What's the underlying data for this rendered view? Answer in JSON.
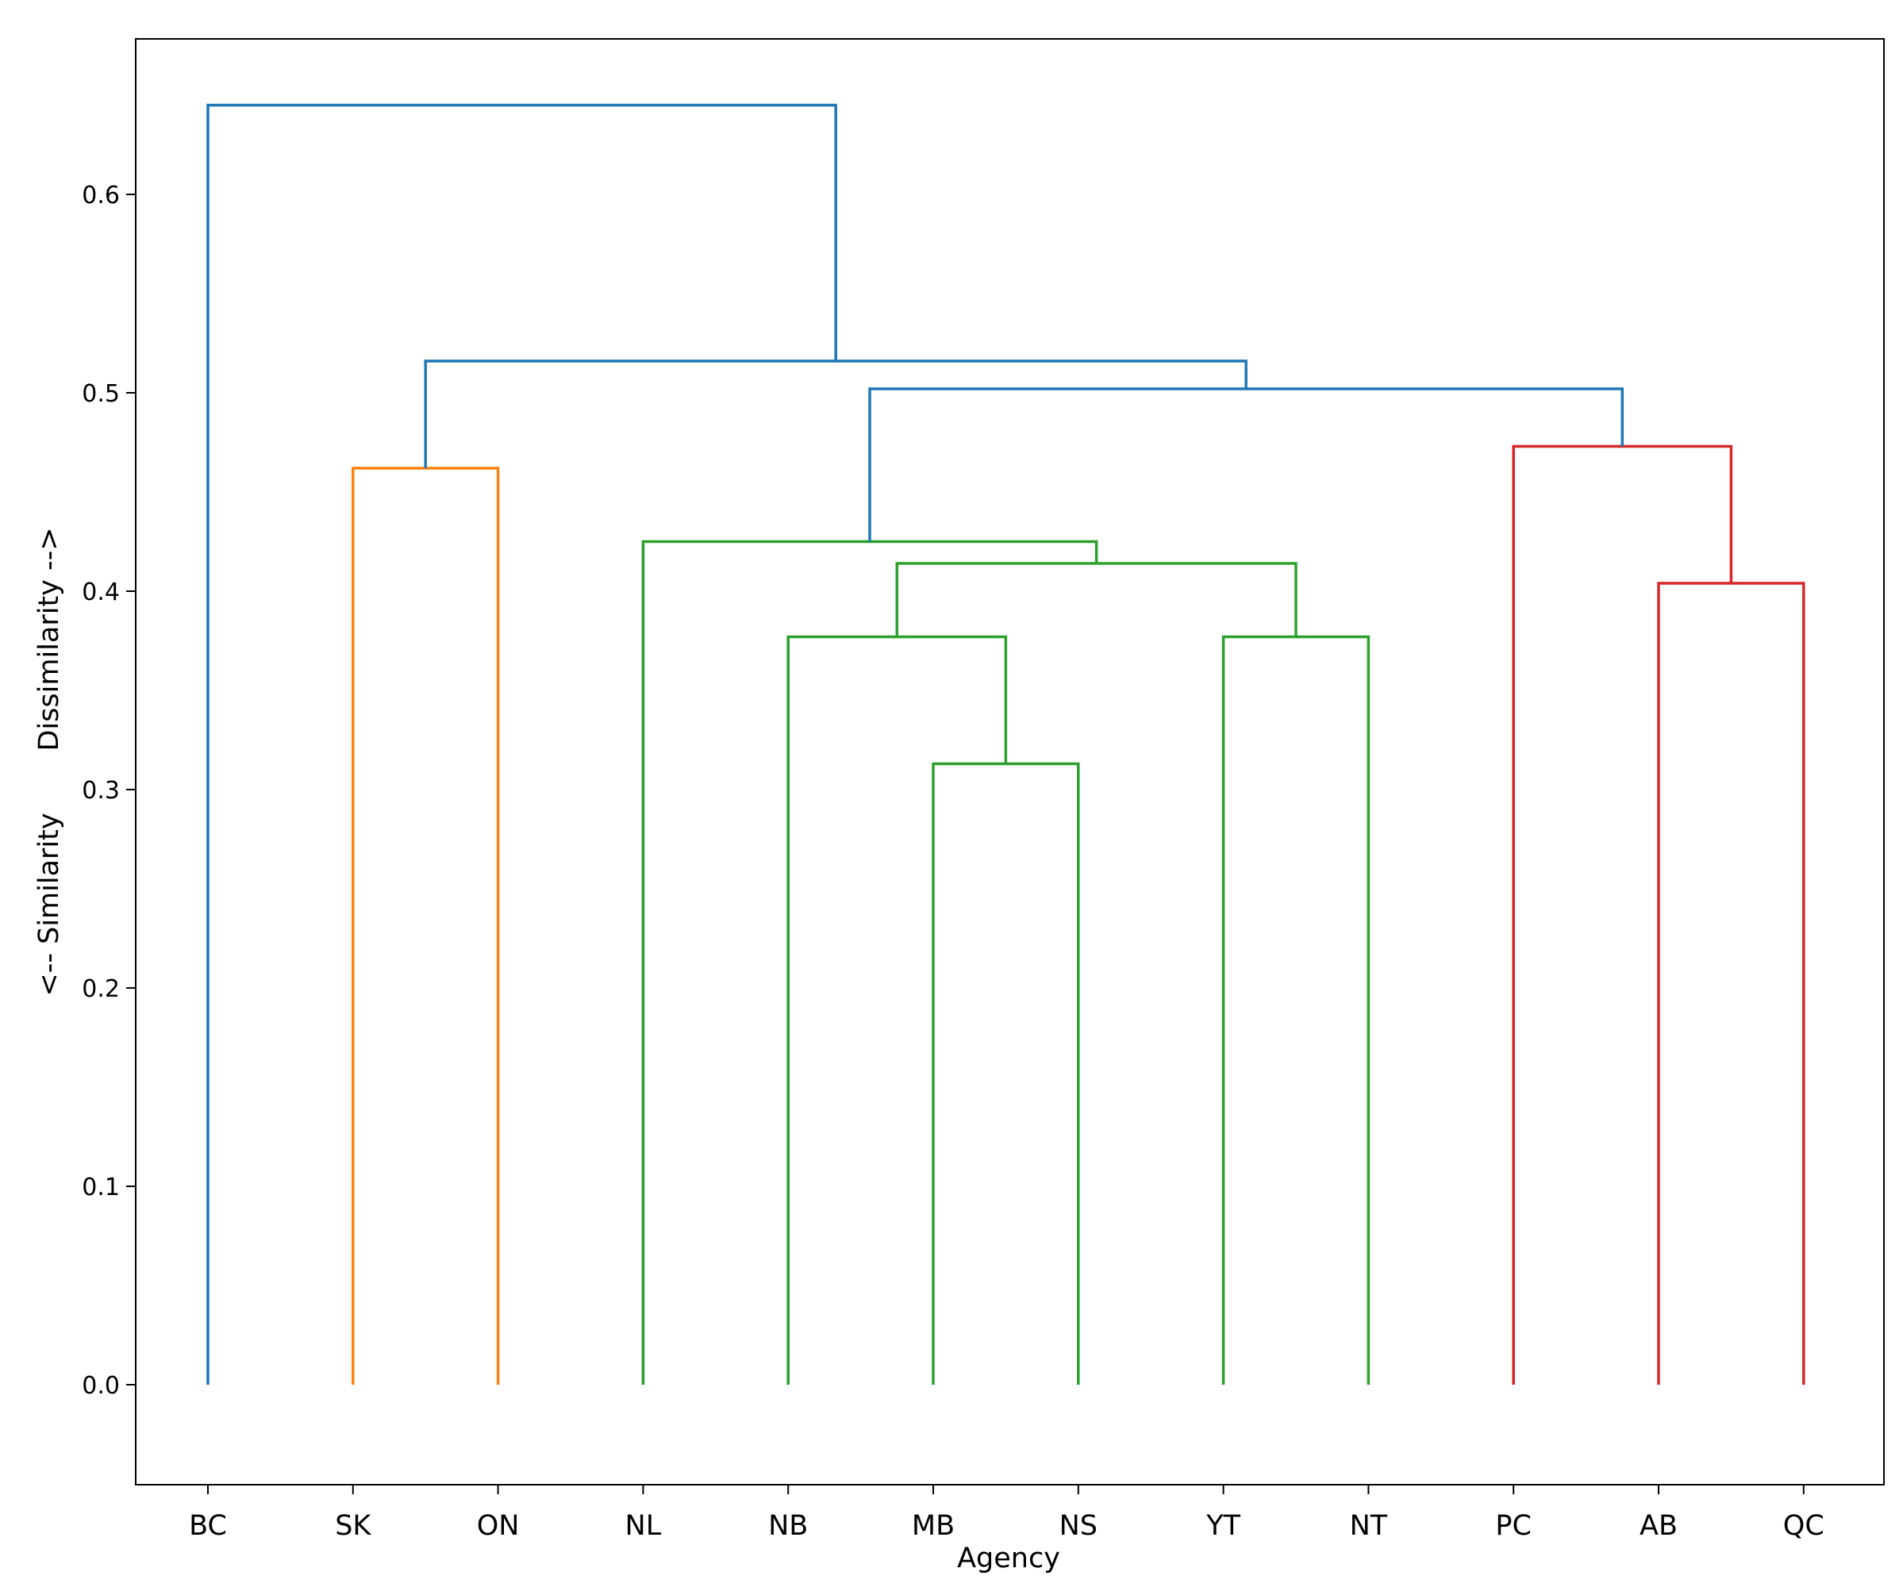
{
  "chart_data": {
    "type": "dendrogram",
    "xlabel": "Agency",
    "ylabel": "<-- Similarity       Dissimilarity -->",
    "ylim": [
      -0.05,
      0.678
    ],
    "yticks": [
      0.0,
      0.1,
      0.2,
      0.3,
      0.4,
      0.5,
      0.6
    ],
    "yticklabels": [
      "0.0",
      "0.1",
      "0.2",
      "0.3",
      "0.4",
      "0.5",
      "0.6"
    ],
    "leaves": [
      "BC",
      "SK",
      "ON",
      "NL",
      "NB",
      "MB",
      "NS",
      "YT",
      "NT",
      "PC",
      "AB",
      "QC"
    ],
    "colors": {
      "blue": "#1f77b4",
      "orange": "#ff7f0e",
      "green": "#2ca02c",
      "red": "#d62728"
    },
    "merges": [
      {
        "left": "MB",
        "right": "NS",
        "height": 0.313,
        "color": "green"
      },
      {
        "left": "NB",
        "right": "MB+NS",
        "height": 0.377,
        "color": "green"
      },
      {
        "left": "YT",
        "right": "NT",
        "height": 0.377,
        "color": "green"
      },
      {
        "left": "NB+MB+NS",
        "right": "YT+NT",
        "height": 0.414,
        "color": "green"
      },
      {
        "left": "NL",
        "right": "NB+MB+NS+YT+NT",
        "height": 0.425,
        "color": "green"
      },
      {
        "left": "SK",
        "right": "ON",
        "height": 0.462,
        "color": "orange"
      },
      {
        "left": "AB",
        "right": "QC",
        "height": 0.404,
        "color": "red"
      },
      {
        "left": "PC",
        "right": "AB+QC",
        "height": 0.473,
        "color": "red"
      },
      {
        "left": "NL+NB+MB+NS+YT+NT",
        "right": "PC+AB+QC",
        "height": 0.502,
        "color": "blue"
      },
      {
        "left": "SK+ON",
        "right": "NL+NB+MB+NS+YT+NT+PC+AB+QC",
        "height": 0.516,
        "color": "blue"
      },
      {
        "left": "BC",
        "right": "SK+ON+NL+NB+MB+NS+YT+NT+PC+AB+QC",
        "height": 0.645,
        "color": "blue"
      }
    ]
  }
}
